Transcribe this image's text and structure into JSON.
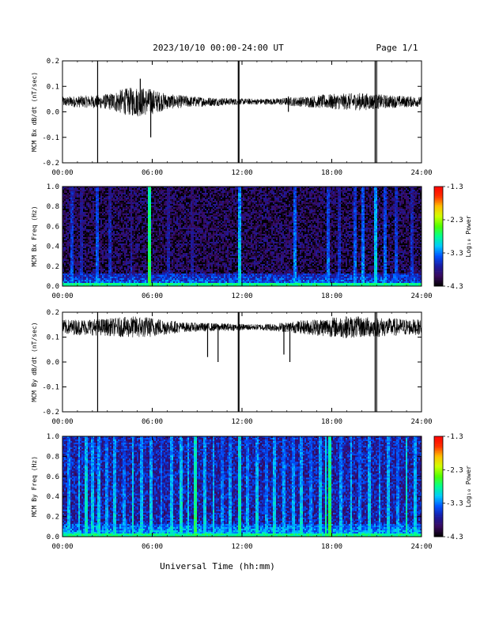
{
  "header": {
    "date_range": "2023/10/10  00:00-24:00 UT",
    "page": "Page 1/1"
  },
  "x_axis": {
    "label": "Universal Time (hh:mm)",
    "ticks": [
      "00:00",
      "06:00",
      "12:00",
      "18:00",
      "24:00"
    ],
    "range_hours": [
      0,
      24
    ]
  },
  "colorbar": {
    "label": "Log₁₀ Power",
    "ticks": [
      "-1.3",
      "-2.3",
      "-3.3",
      "-4.3"
    ],
    "range": [
      -4.3,
      -1.3
    ],
    "colors": [
      "#000000",
      "#3a0a5e",
      "#1a1aa0",
      "#0050ff",
      "#00c8ff",
      "#00ff90",
      "#50ff00",
      "#d0ff00",
      "#ffc000",
      "#ff3000",
      "#ff0000"
    ]
  },
  "chart_data": [
    {
      "type": "line",
      "ylabel": "MCM Bx dB/dt (nT/sec)",
      "ylim": [
        -0.2,
        0.2
      ],
      "yticks": [
        "0.2",
        "0.1",
        "0.0",
        "-0.1",
        "-0.2"
      ],
      "baseline": 0.04,
      "noise_envelope": [
        {
          "t": 0,
          "amp": 0.02
        },
        {
          "t": 2,
          "amp": 0.025
        },
        {
          "t": 3,
          "amp": 0.03
        },
        {
          "t": 4,
          "amp": 0.05
        },
        {
          "t": 5,
          "amp": 0.06
        },
        {
          "t": 6,
          "amp": 0.05
        },
        {
          "t": 7,
          "amp": 0.03
        },
        {
          "t": 9,
          "amp": 0.02
        },
        {
          "t": 12,
          "amp": 0.012
        },
        {
          "t": 14,
          "amp": 0.012
        },
        {
          "t": 16,
          "amp": 0.02
        },
        {
          "t": 18,
          "amp": 0.03
        },
        {
          "t": 20,
          "amp": 0.035
        },
        {
          "t": 22,
          "amp": 0.025
        },
        {
          "t": 24,
          "amp": 0.02
        }
      ],
      "spikes": [
        {
          "t": 2.35,
          "min": -0.2,
          "max": 0.2
        },
        {
          "t": 5.2,
          "min": 0.0,
          "max": 0.13
        },
        {
          "t": 5.9,
          "min": -0.1,
          "max": 0.08
        },
        {
          "t": 11.75,
          "min": -0.2,
          "max": 0.2
        },
        {
          "t": 11.8,
          "min": -0.2,
          "max": 0.2
        },
        {
          "t": 15.1,
          "min": 0.0,
          "max": 0.06
        },
        {
          "t": 20.9,
          "min": -0.2,
          "max": 0.2
        },
        {
          "t": 21.0,
          "min": -0.2,
          "max": 0.2
        }
      ]
    },
    {
      "type": "heatmap",
      "ylabel": "MCM Bx Freq (Hz)",
      "ylim": [
        0,
        1.0
      ],
      "yticks": [
        "1.0",
        "0.8",
        "0.6",
        "0.4",
        "0.2",
        "0.0"
      ],
      "zlim": [
        -4.3,
        -1.3
      ],
      "background_level": -4.05,
      "lowfreq_level": -3.3,
      "bright_lines": [
        {
          "t": 0.6,
          "level": -3.4
        },
        {
          "t": 1.3,
          "level": -3.6
        },
        {
          "t": 2.35,
          "level": -3.3
        },
        {
          "t": 3.2,
          "level": -3.5
        },
        {
          "t": 4.6,
          "level": -3.6
        },
        {
          "t": 5.85,
          "level": -2.6
        },
        {
          "t": 7.1,
          "level": -3.6
        },
        {
          "t": 8.7,
          "level": -3.7
        },
        {
          "t": 11.8,
          "level": -3.0
        },
        {
          "t": 15.5,
          "level": -3.2
        },
        {
          "t": 17.8,
          "level": -3.3
        },
        {
          "t": 18.5,
          "level": -3.5
        },
        {
          "t": 19.6,
          "level": -3.3
        },
        {
          "t": 20.1,
          "level": -3.2
        },
        {
          "t": 20.9,
          "level": -3.0
        },
        {
          "t": 21.6,
          "level": -3.3
        },
        {
          "t": 22.3,
          "level": -3.4
        },
        {
          "t": 23.4,
          "level": -3.5
        }
      ]
    },
    {
      "type": "line",
      "ylabel": "MCM By dB/dt (nT/sec)",
      "ylim": [
        -0.2,
        0.2
      ],
      "yticks": [
        "0.2",
        "0.1",
        "0.0",
        "-0.1",
        "-0.2"
      ],
      "baseline": 0.14,
      "noise_envelope": [
        {
          "t": 0,
          "amp": 0.03
        },
        {
          "t": 3,
          "amp": 0.035
        },
        {
          "t": 5,
          "amp": 0.045
        },
        {
          "t": 6,
          "amp": 0.04
        },
        {
          "t": 8,
          "amp": 0.02
        },
        {
          "t": 11,
          "amp": 0.015
        },
        {
          "t": 13,
          "amp": 0.012
        },
        {
          "t": 15,
          "amp": 0.02
        },
        {
          "t": 17,
          "amp": 0.035
        },
        {
          "t": 19,
          "amp": 0.045
        },
        {
          "t": 21,
          "amp": 0.04
        },
        {
          "t": 24,
          "amp": 0.03
        }
      ],
      "spikes": [
        {
          "t": 2.35,
          "min": -0.2,
          "max": 0.2
        },
        {
          "t": 9.7,
          "min": 0.02,
          "max": 0.15
        },
        {
          "t": 10.4,
          "min": 0.0,
          "max": 0.15
        },
        {
          "t": 11.75,
          "min": -0.2,
          "max": 0.2
        },
        {
          "t": 11.8,
          "min": -0.2,
          "max": 0.2
        },
        {
          "t": 14.8,
          "min": 0.03,
          "max": 0.15
        },
        {
          "t": 15.2,
          "min": 0.0,
          "max": 0.15
        },
        {
          "t": 20.9,
          "min": -0.2,
          "max": 0.2
        },
        {
          "t": 21.0,
          "min": -0.2,
          "max": 0.2
        }
      ]
    },
    {
      "type": "heatmap",
      "ylabel": "MCM By Freq (Hz)",
      "ylim": [
        0,
        1.0
      ],
      "yticks": [
        "1.0",
        "0.8",
        "0.6",
        "0.4",
        "0.2",
        "0.0"
      ],
      "zlim": [
        -4.3,
        -1.3
      ],
      "background_level": -3.7,
      "lowfreq_level": -3.1,
      "bright_lines": [
        {
          "t": 0.4,
          "level": -3.1
        },
        {
          "t": 1.1,
          "level": -3.0
        },
        {
          "t": 1.6,
          "level": -2.9
        },
        {
          "t": 2.0,
          "level": -3.0
        },
        {
          "t": 2.4,
          "level": -3.0
        },
        {
          "t": 3.0,
          "level": -3.1
        },
        {
          "t": 3.5,
          "level": -3.0
        },
        {
          "t": 4.1,
          "level": -3.2
        },
        {
          "t": 4.7,
          "level": -2.9
        },
        {
          "t": 5.3,
          "level": -3.0
        },
        {
          "t": 5.9,
          "level": -3.0
        },
        {
          "t": 6.6,
          "level": -3.2
        },
        {
          "t": 7.3,
          "level": -3.0
        },
        {
          "t": 7.9,
          "level": -2.9
        },
        {
          "t": 8.4,
          "level": -3.0
        },
        {
          "t": 8.9,
          "level": -2.7
        },
        {
          "t": 9.5,
          "level": -3.0
        },
        {
          "t": 10.1,
          "level": -3.0
        },
        {
          "t": 10.7,
          "level": -3.2
        },
        {
          "t": 11.2,
          "level": -3.1
        },
        {
          "t": 11.8,
          "level": -2.8
        },
        {
          "t": 12.4,
          "level": -3.1
        },
        {
          "t": 13.0,
          "level": -3.0
        },
        {
          "t": 13.6,
          "level": -3.2
        },
        {
          "t": 14.2,
          "level": -3.0
        },
        {
          "t": 14.8,
          "level": -3.1
        },
        {
          "t": 15.4,
          "level": -3.1
        },
        {
          "t": 16.0,
          "level": -3.0
        },
        {
          "t": 16.6,
          "level": -3.2
        },
        {
          "t": 17.2,
          "level": -3.0
        },
        {
          "t": 17.6,
          "level": -2.8
        },
        {
          "t": 17.9,
          "level": -2.6
        },
        {
          "t": 18.6,
          "level": -3.1
        },
        {
          "t": 19.3,
          "level": -3.0
        },
        {
          "t": 19.9,
          "level": -3.2
        },
        {
          "t": 20.5,
          "level": -3.0
        },
        {
          "t": 21.2,
          "level": -3.1
        },
        {
          "t": 21.8,
          "level": -3.0
        },
        {
          "t": 22.4,
          "level": -3.2
        },
        {
          "t": 23.0,
          "level": -2.8
        },
        {
          "t": 23.6,
          "level": -3.0
        }
      ]
    }
  ]
}
